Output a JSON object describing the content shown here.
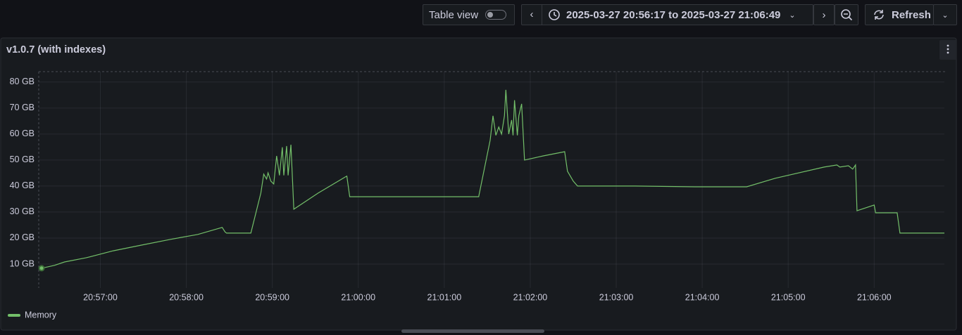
{
  "toolbar": {
    "table_view": "Table view",
    "time_range": "2025-03-27 20:56:17 to 2025-03-27 21:06:49",
    "refresh": "Refresh"
  },
  "chart_data": {
    "type": "line",
    "title": "v1.0.7 (with indexes)",
    "x": [
      "20:56:19",
      "20:56:28",
      "20:56:35",
      "20:56:50",
      "20:57:09",
      "20:57:29",
      "20:57:49",
      "20:58:08",
      "20:58:25",
      "20:58:27",
      "20:58:28",
      "20:58:45",
      "20:58:52",
      "20:58:54",
      "20:58:56",
      "20:58:57",
      "20:58:59",
      "20:59:01",
      "20:59:03",
      "20:59:05",
      "20:59:07",
      "20:59:08",
      "20:59:10",
      "20:59:11",
      "20:59:13",
      "20:59:15",
      "20:59:32",
      "20:59:51",
      "20:59:52",
      "20:59:54",
      "21:01:24",
      "21:01:32",
      "21:01:34",
      "21:01:36",
      "21:01:38",
      "21:01:40",
      "21:01:42",
      "21:01:43",
      "21:01:45",
      "21:01:47",
      "21:01:48",
      "21:01:49",
      "21:01:51",
      "21:01:52",
      "21:01:54",
      "21:01:56",
      "21:02:09",
      "21:02:24",
      "21:02:26",
      "21:02:30",
      "21:02:33",
      "21:03:13",
      "21:03:55",
      "21:04:31",
      "21:04:51",
      "21:05:25",
      "21:05:34",
      "21:05:36",
      "21:05:42",
      "21:05:45",
      "21:05:47",
      "21:05:48",
      "21:06:00",
      "21:06:01",
      "21:06:16",
      "21:06:18",
      "21:06:49"
    ],
    "series": [
      {
        "name": "Memory",
        "color": "#73bf69",
        "values": [
          8.4,
          9.5,
          10.8,
          12.4,
          15.1,
          17.3,
          19.5,
          21.4,
          24.1,
          22.4,
          21.9,
          21.9,
          37.3,
          44.6,
          42.7,
          45.1,
          41.9,
          40.8,
          51.6,
          44.1,
          54.9,
          44.1,
          55.4,
          44.1,
          55.9,
          31.1,
          37.3,
          43.5,
          43.8,
          35.9,
          35.9,
          57.6,
          67.0,
          59.5,
          62.7,
          60.0,
          67.0,
          77.0,
          60.0,
          65.4,
          59.5,
          73.0,
          59.5,
          67.0,
          71.6,
          50.0,
          51.6,
          53.2,
          45.7,
          41.9,
          40.0,
          40.0,
          39.7,
          39.7,
          43.0,
          47.3,
          48.1,
          47.3,
          47.8,
          46.5,
          48.1,
          30.5,
          32.7,
          29.7,
          29.7,
          21.9,
          21.9
        ]
      }
    ],
    "xlim": [
      "20:56:17",
      "21:06:49"
    ],
    "xticks": [
      "20:57:00",
      "20:58:00",
      "20:59:00",
      "21:00:00",
      "21:01:00",
      "21:02:00",
      "21:03:00",
      "21:04:00",
      "21:05:00",
      "21:06:00"
    ],
    "ylim": [
      0,
      84
    ],
    "yticks": [
      {
        "value": 10,
        "label": "10 GB"
      },
      {
        "value": 20,
        "label": "20 GB"
      },
      {
        "value": 30,
        "label": "30 GB"
      },
      {
        "value": 40,
        "label": "40 GB"
      },
      {
        "value": 50,
        "label": "50 GB"
      },
      {
        "value": 60,
        "label": "60 GB"
      },
      {
        "value": 70,
        "label": "70 GB"
      },
      {
        "value": 80,
        "label": "80 GB"
      }
    ],
    "grid": true,
    "legend": "bottom-left"
  }
}
